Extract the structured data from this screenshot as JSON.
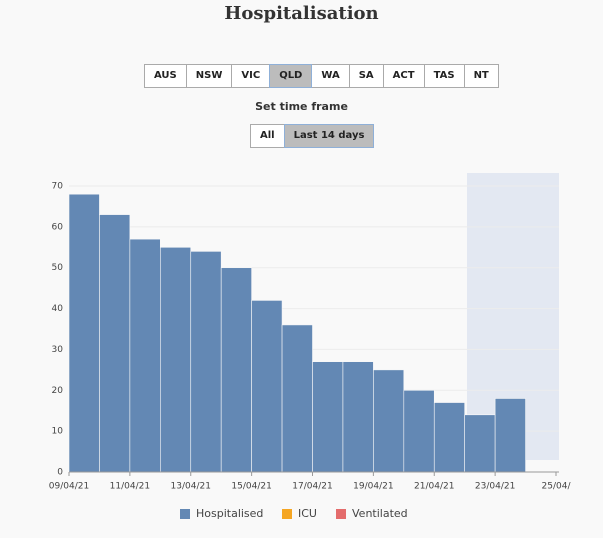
{
  "title": "Hospitalisation",
  "regions": [
    "AUS",
    "NSW",
    "VIC",
    "QLD",
    "WA",
    "SA",
    "ACT",
    "TAS",
    "NT"
  ],
  "selected_region": 3,
  "time_frame_label": "Set time frame",
  "time_frames": [
    "All",
    "Last 14 days"
  ],
  "selected_time_frame": 1,
  "chart_data": {
    "type": "bar",
    "categories": [
      "09/04/21",
      null,
      "11/04/21",
      null,
      "13/04/21",
      null,
      "15/04/21",
      null,
      "17/04/21",
      null,
      "19/04/21",
      null,
      "21/04/21",
      null,
      "23/04/21",
      null,
      "25/04/"
    ],
    "series": [
      {
        "name": "Hospitalised",
        "color": "#6388b4",
        "values": [
          68,
          63,
          57,
          55,
          54,
          50,
          42,
          36,
          27,
          27,
          25,
          20,
          17,
          14,
          18,
          null,
          null
        ]
      },
      {
        "name": "ICU",
        "color": "#f5a623",
        "values": [
          0,
          0,
          0,
          0,
          0,
          0,
          0,
          0,
          0,
          0,
          0,
          0,
          0,
          0,
          0,
          null,
          null
        ]
      },
      {
        "name": "Ventilated",
        "color": "#e46c6c",
        "values": [
          0,
          0,
          0,
          0,
          0,
          0,
          0,
          0,
          0,
          0,
          0,
          0,
          0,
          0,
          0,
          null,
          null
        ]
      }
    ],
    "ylim": [
      0,
      70
    ],
    "yticks": [
      0,
      10,
      20,
      30,
      40,
      50,
      60,
      70
    ],
    "grid": true
  }
}
